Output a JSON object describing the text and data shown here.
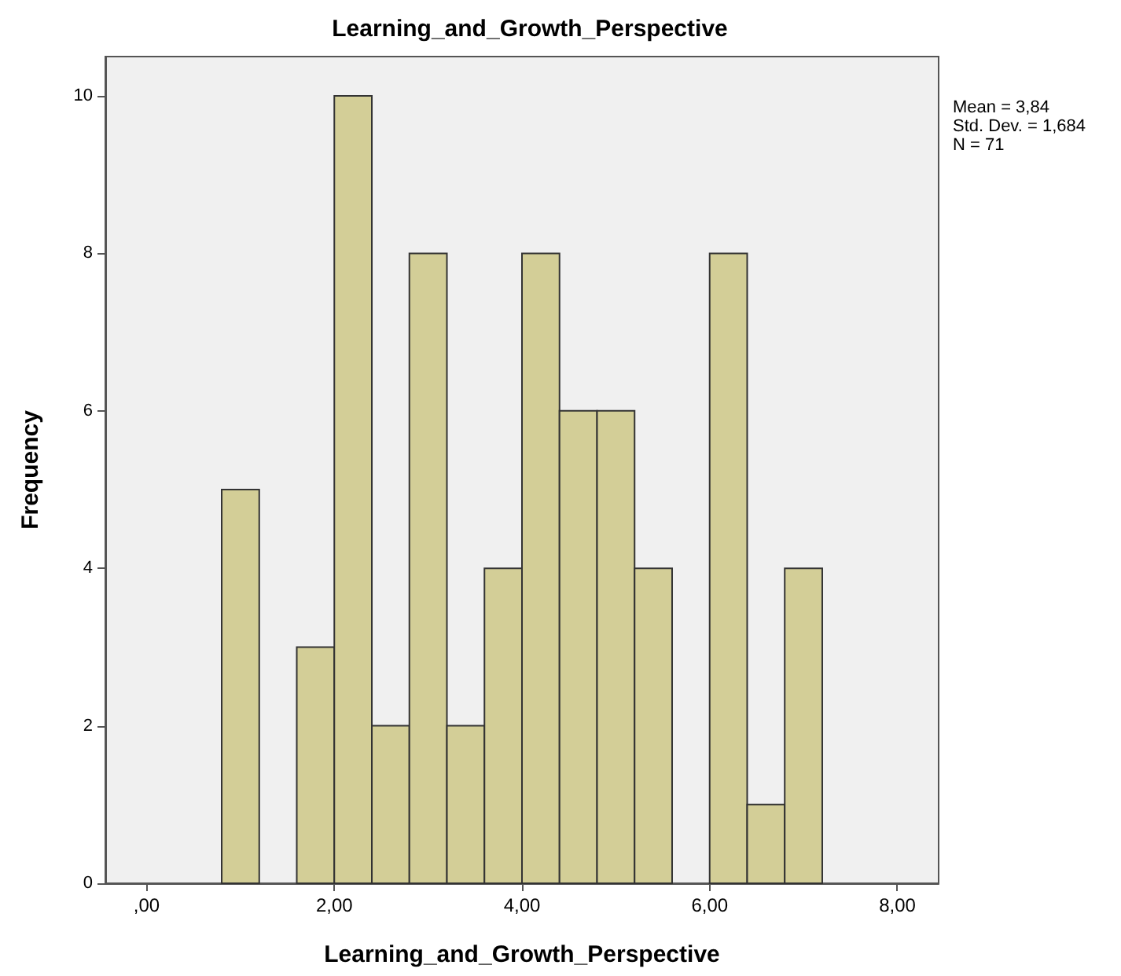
{
  "chart_data": {
    "type": "histogram",
    "title": "Learning_and_Growth_Perspective",
    "xlabel": "Learning_and_Growth_Perspective",
    "ylabel": "Frequency",
    "bins": [
      0.8,
      1.2,
      1.6,
      2.0,
      2.4,
      2.8,
      3.2,
      3.6,
      4.0,
      4.4,
      4.8,
      5.2,
      5.6,
      6.0,
      6.4,
      6.8,
      7.2
    ],
    "values": [
      5,
      0,
      3,
      10,
      2,
      8,
      2,
      4,
      8,
      6,
      6,
      4,
      0,
      8,
      1,
      4
    ],
    "color": "#d3ce97",
    "xlim": [
      -0.44,
      8.44
    ],
    "xticks": [
      {
        "value": 0,
        "label": ",00"
      },
      {
        "value": 2,
        "label": "2,00"
      },
      {
        "value": 4,
        "label": "4,00"
      },
      {
        "value": 6,
        "label": "6,00"
      },
      {
        "value": 8,
        "label": "8,00"
      }
    ],
    "ylim": [
      0,
      10.5
    ],
    "yticks": [
      0,
      2,
      4,
      6,
      8,
      10
    ],
    "annotations": [
      "Mean = 3,84",
      "Std. Dev. = 1,684",
      "N = 71"
    ]
  }
}
